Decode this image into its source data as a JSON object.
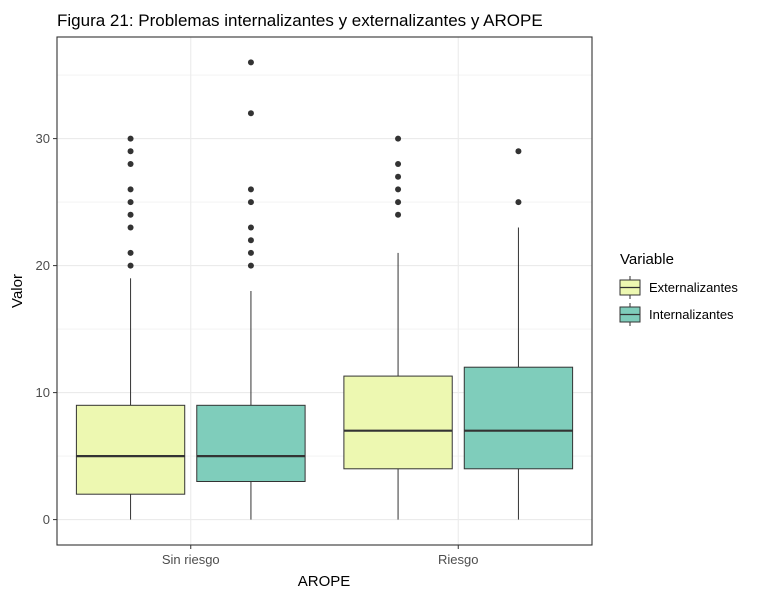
{
  "chart_data": {
    "type": "boxplot",
    "title": "Figura 21: Problemas internalizantes y externalizantes y AROPE",
    "xlabel": "AROPE",
    "ylabel": "Valor",
    "ylim": [
      -2,
      38
    ],
    "yticks": [
      0,
      10,
      20,
      30
    ],
    "categories": [
      "Sin riesgo",
      "Riesgo"
    ],
    "grid": true,
    "legend": {
      "title": "Variable",
      "position": "right"
    },
    "series": [
      {
        "name": "Externalizantes",
        "color": "#edf8b1",
        "boxes": [
          {
            "category": "Sin riesgo",
            "whisker_low": 0,
            "q1": 2,
            "median": 5,
            "q3": 9,
            "whisker_high": 19,
            "outliers": [
              20,
              21,
              23,
              24,
              25,
              26,
              28,
              29,
              30
            ]
          },
          {
            "category": "Riesgo",
            "whisker_low": 0,
            "q1": 4,
            "median": 7,
            "q3": 11.3,
            "whisker_high": 21,
            "outliers": [
              24,
              25,
              26,
              27,
              28,
              30
            ]
          }
        ]
      },
      {
        "name": "Internalizantes",
        "color": "#7fcdbb",
        "boxes": [
          {
            "category": "Sin riesgo",
            "whisker_low": 0,
            "q1": 3,
            "median": 5,
            "q3": 9,
            "whisker_high": 18,
            "outliers": [
              20,
              21,
              22,
              23,
              25,
              26,
              32,
              36
            ]
          },
          {
            "category": "Riesgo",
            "whisker_low": 0,
            "q1": 4,
            "median": 7,
            "q3": 12,
            "whisker_high": 23,
            "outliers": [
              25,
              29
            ]
          }
        ]
      }
    ]
  }
}
